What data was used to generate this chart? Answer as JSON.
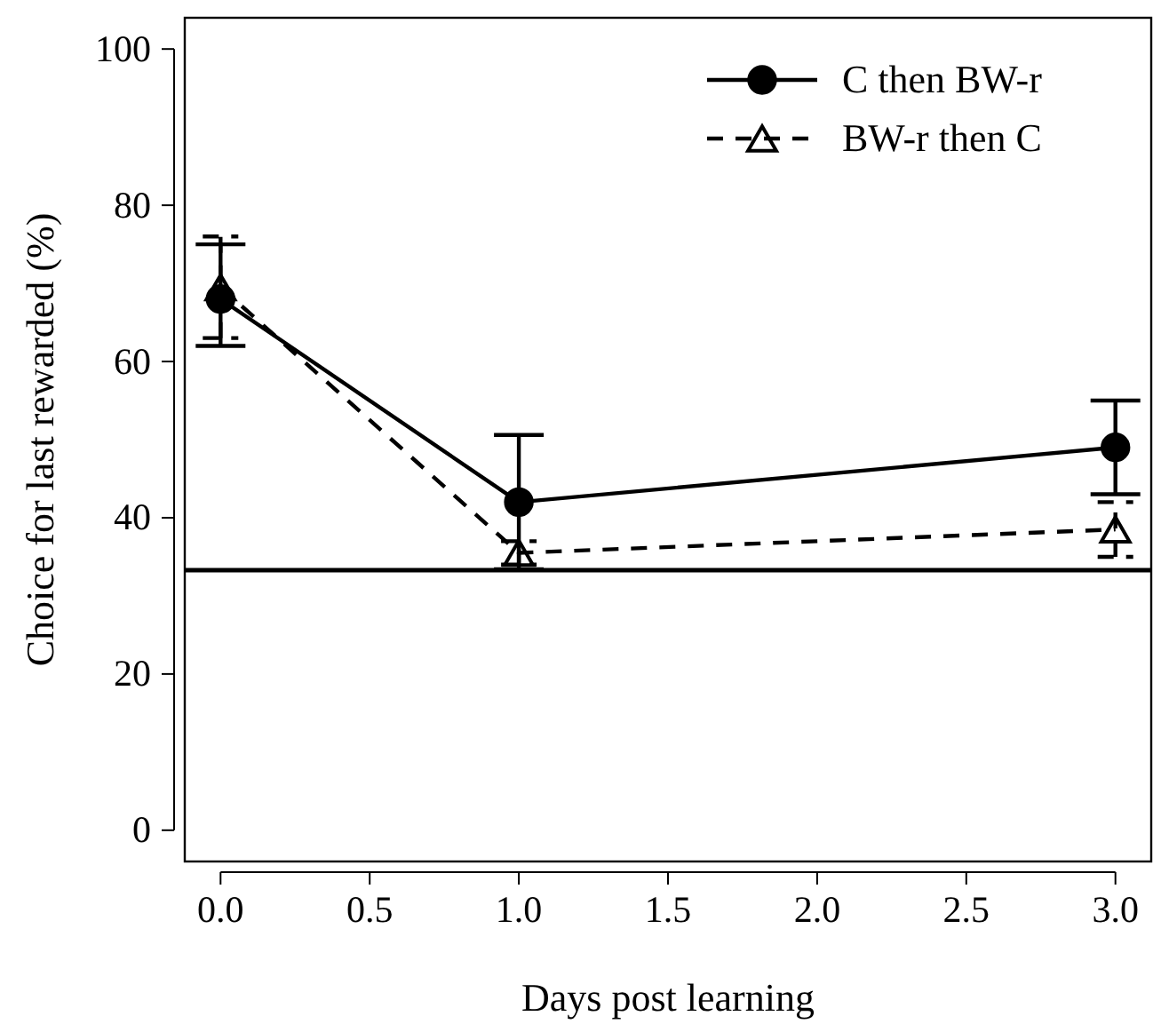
{
  "chart_data": {
    "type": "line",
    "xlabel": "Days post learning",
    "ylabel": "Choice for last rewarded (%)",
    "x": [
      0,
      1,
      3
    ],
    "series": [
      {
        "name": "C then BW-r",
        "color": "#000000",
        "marker": "circle",
        "line_style": "solid",
        "values": [
          68,
          42,
          49
        ],
        "errors": [
          [
            62,
            75
          ],
          8.6,
          6
        ]
      },
      {
        "name": "BW-r then C",
        "color": "#000000",
        "marker": "triangle",
        "line_style": "dashed",
        "values": [
          69.5,
          35.5,
          38.5
        ],
        "errors": [
          6.5,
          1.5,
          3.5
        ]
      }
    ],
    "xlim": [
      -0.12,
      3.12
    ],
    "xticks": [
      {
        "value": 0,
        "label": "0.0"
      },
      {
        "value": 0.5,
        "label": "0.5"
      },
      {
        "value": 1,
        "label": "1.0"
      },
      {
        "value": 1.5,
        "label": "1.5"
      },
      {
        "value": 2,
        "label": "2.0"
      },
      {
        "value": 2.5,
        "label": "2.5"
      },
      {
        "value": 3,
        "label": "3.0"
      }
    ],
    "ylim": [
      -4,
      104
    ],
    "yticks": [
      0,
      20,
      40,
      60,
      80,
      100
    ],
    "ref_lines": [
      {
        "axis": "y",
        "value": 33.3,
        "label": null
      }
    ],
    "legend": "top right",
    "grid": false
  }
}
